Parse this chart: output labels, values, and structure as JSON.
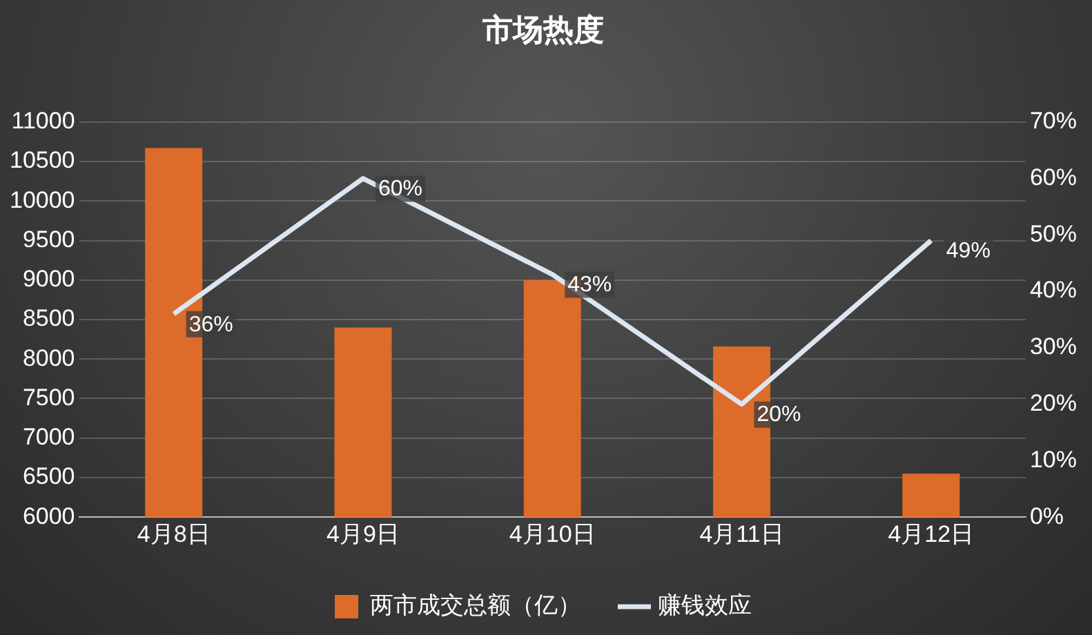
{
  "chart_data": {
    "type": "bar",
    "title": "市场热度",
    "categories": [
      "4月8日",
      "4月9日",
      "4月10日",
      "4月11日",
      "4月12日"
    ],
    "series": [
      {
        "name": "两市成交总额（亿）",
        "color": "#dd6b2a",
        "values": [
          10670,
          8400,
          9000,
          8160,
          6550
        ]
      },
      {
        "name": "赚钱效应",
        "type": "line",
        "axis": "y2",
        "color": "#dce6f2",
        "values": [
          36,
          60,
          43,
          20,
          49
        ],
        "value_labels": [
          "36%",
          "60%",
          "43%",
          "20%",
          "49%"
        ]
      }
    ],
    "ylim": [
      6000,
      11000
    ],
    "yticks": [
      6000,
      6500,
      7000,
      7500,
      8000,
      8500,
      9000,
      9500,
      10000,
      10500,
      11000
    ],
    "y2lim": [
      0,
      70
    ],
    "y2ticks": [
      {
        "value": 0,
        "label": "0%"
      },
      {
        "value": 10,
        "label": "10%"
      },
      {
        "value": 20,
        "label": "20%"
      },
      {
        "value": 30,
        "label": "30%"
      },
      {
        "value": 40,
        "label": "40%"
      },
      {
        "value": 50,
        "label": "50%"
      },
      {
        "value": 60,
        "label": "60%"
      },
      {
        "value": 70,
        "label": "70%"
      }
    ],
    "grid": "y",
    "legend": "bottom",
    "marker": "none"
  }
}
